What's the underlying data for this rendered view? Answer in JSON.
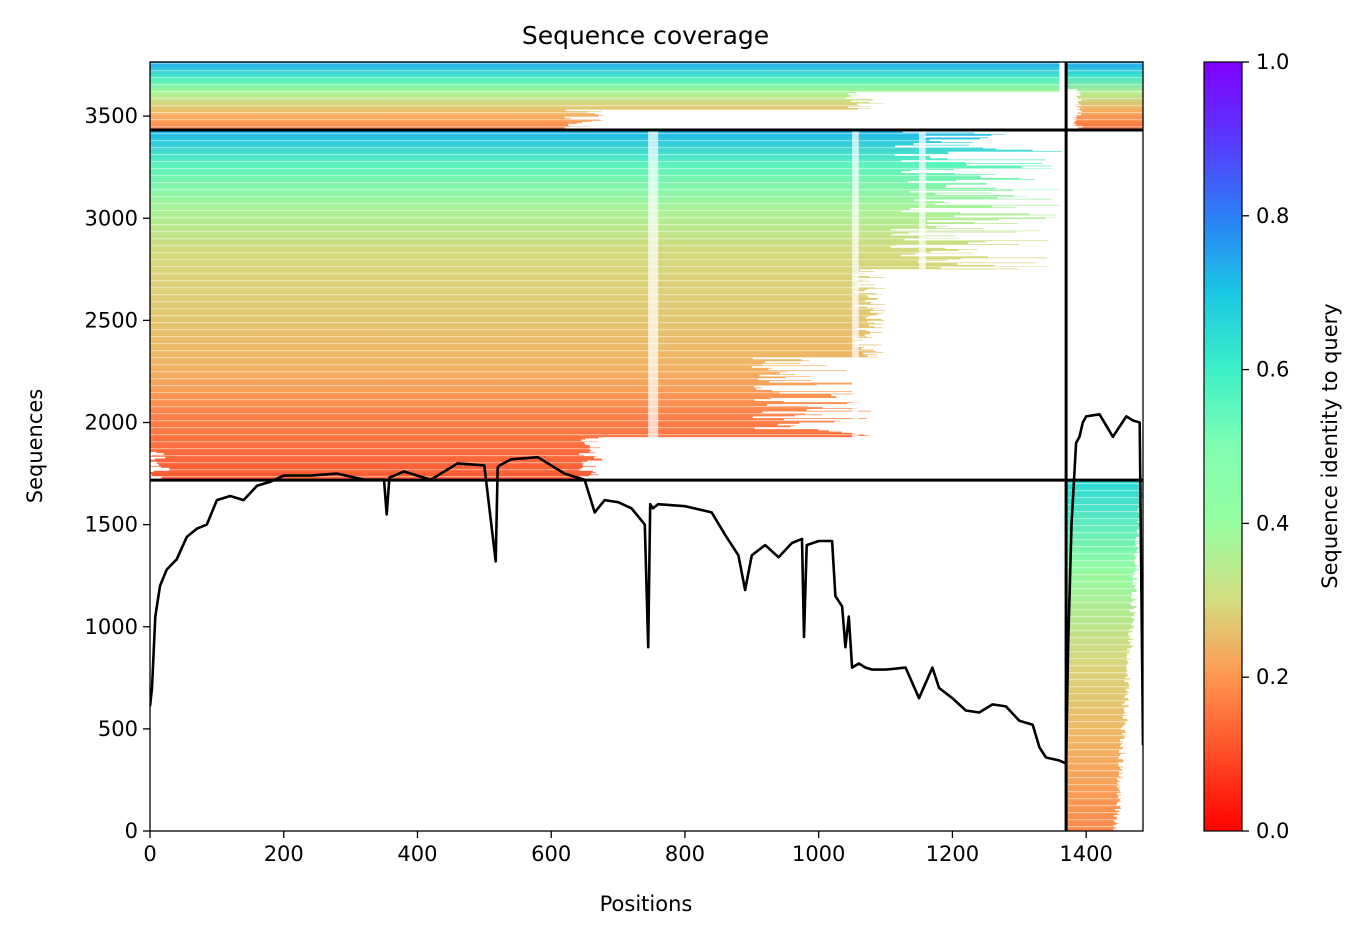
{
  "chart_data": {
    "type": "heatmap",
    "title": "Sequence coverage",
    "xlabel": "Positions",
    "ylabel": "Sequences",
    "xlim": [
      0,
      1485
    ],
    "ylim": [
      0,
      3765
    ],
    "xticks": [
      0,
      200,
      400,
      600,
      800,
      1000,
      1200,
      1400
    ],
    "yticks": [
      0,
      500,
      1000,
      1500,
      2000,
      2500,
      3000,
      3500
    ],
    "colorbar": {
      "label": "Sequence identity to query",
      "range": [
        0.0,
        1.0
      ],
      "ticks": [
        0.0,
        0.2,
        0.4,
        0.6,
        0.8,
        1.0
      ],
      "tick_labels": [
        "0.0",
        "0.2",
        "0.4",
        "0.6",
        "0.8",
        "1.0"
      ],
      "colormap": "rainbow_r"
    },
    "chain_boundaries": {
      "vertical_x": [
        1370
      ],
      "horizontal_y": [
        1718,
        3432
      ]
    },
    "blocks": [
      {
        "x0": 0,
        "x1": 1370,
        "y0": 3432,
        "y1": 3765,
        "identity_bottom": 0.2,
        "identity_top": 0.75
      },
      {
        "x0": 0,
        "x1": 1370,
        "y0": 1718,
        "y1": 3432,
        "identity_bottom": 0.18,
        "identity_top": 0.72
      },
      {
        "x0": 1370,
        "x1": 1485,
        "y0": 3432,
        "y1": 3765,
        "identity_bottom": 0.22,
        "identity_top": 0.75
      },
      {
        "x0": 1370,
        "x1": 1485,
        "y0": 0,
        "y1": 1718,
        "identity_bottom": 0.18,
        "identity_top": 0.62
      }
    ],
    "coverage_line": {
      "x": [
        0,
        3,
        8,
        15,
        25,
        40,
        55,
        70,
        85,
        100,
        120,
        140,
        160,
        180,
        200,
        240,
        280,
        320,
        350,
        354,
        358,
        380,
        420,
        460,
        500,
        517,
        520,
        523,
        540,
        580,
        620,
        650,
        665,
        680,
        700,
        720,
        740,
        745,
        748,
        752,
        760,
        800,
        840,
        860,
        880,
        890,
        900,
        920,
        940,
        960,
        975,
        978,
        982,
        1000,
        1020,
        1025,
        1035,
        1040,
        1045,
        1050,
        1060,
        1070,
        1080,
        1100,
        1130,
        1150,
        1170,
        1180,
        1200,
        1220,
        1240,
        1260,
        1280,
        1300,
        1320,
        1330,
        1340,
        1360,
        1370,
        1373,
        1378,
        1385,
        1390,
        1395,
        1400,
        1420,
        1440,
        1460,
        1470,
        1480,
        1485
      ],
      "y": [
        610,
        700,
        1050,
        1200,
        1280,
        1330,
        1440,
        1480,
        1500,
        1620,
        1640,
        1620,
        1690,
        1710,
        1740,
        1740,
        1750,
        1720,
        1720,
        1550,
        1730,
        1760,
        1720,
        1800,
        1790,
        1320,
        1780,
        1790,
        1820,
        1830,
        1750,
        1720,
        1560,
        1620,
        1610,
        1580,
        1500,
        900,
        1600,
        1580,
        1600,
        1590,
        1560,
        1450,
        1350,
        1180,
        1350,
        1400,
        1340,
        1410,
        1430,
        950,
        1400,
        1420,
        1420,
        1150,
        1100,
        900,
        1050,
        800,
        820,
        800,
        790,
        790,
        800,
        650,
        800,
        700,
        650,
        590,
        580,
        620,
        610,
        540,
        520,
        410,
        360,
        345,
        330,
        900,
        1500,
        1900,
        1930,
        2000,
        2030,
        2040,
        1930,
        2030,
        2010,
        2000,
        420
      ]
    }
  }
}
